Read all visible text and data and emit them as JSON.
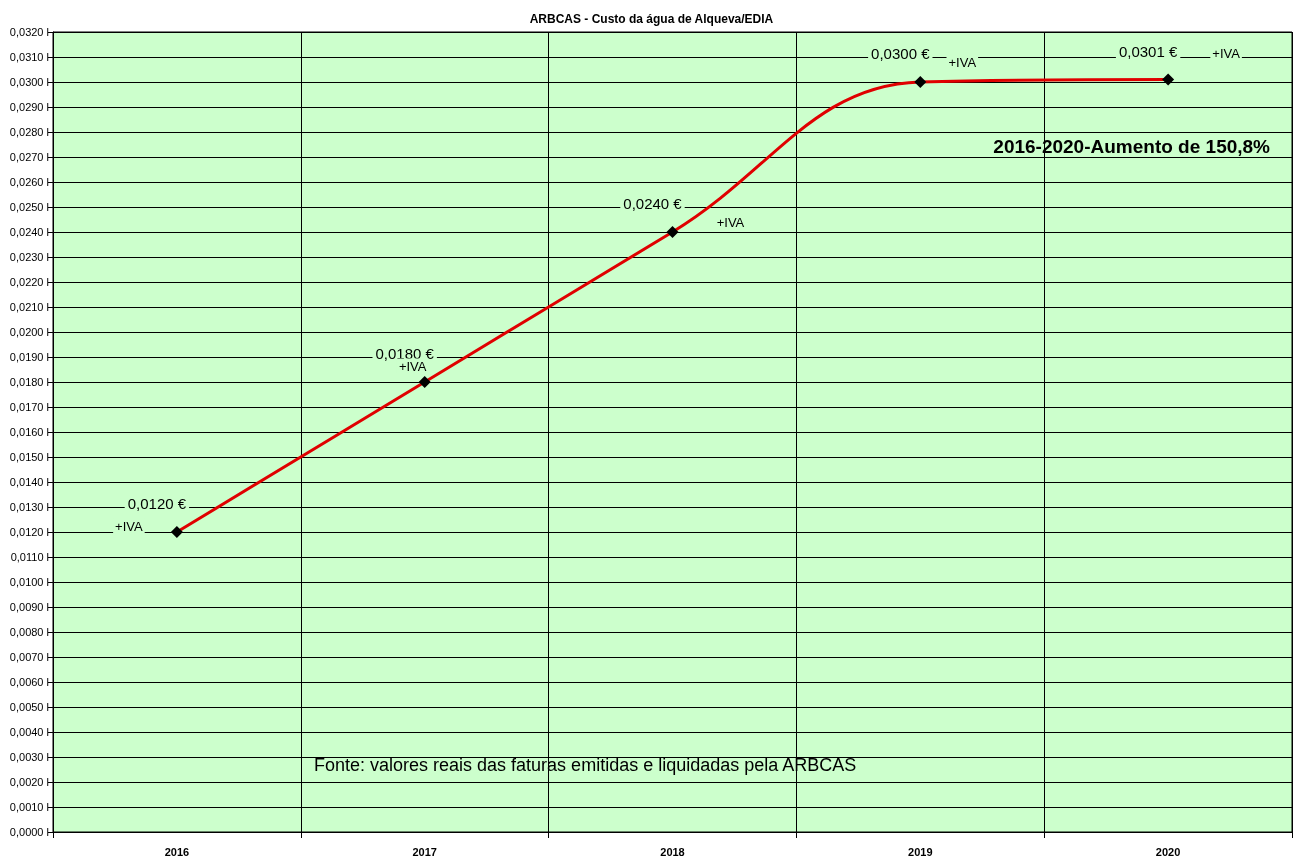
{
  "chart_data": {
    "type": "line",
    "title": "ARBCAS - Custo da água de Alqueva/EDIA",
    "categories": [
      "2016",
      "2017",
      "2018",
      "2019",
      "2020"
    ],
    "series": [
      {
        "color": "#e00000",
        "values": [
          0.012,
          0.018,
          0.024,
          0.03,
          0.0301
        ],
        "value_labels": [
          "0,0120 €",
          "0,0180 €",
          "0,0240 €",
          "0,0300 €",
          "0,0301 €"
        ]
      }
    ],
    "ylim": [
      0,
      0.032
    ],
    "yticks": [
      {
        "value": 0,
        "label": "0,0000 l"
      },
      {
        "value": 0.001,
        "label": "0,0010 l"
      },
      {
        "value": 0.002,
        "label": "0,0020 l"
      },
      {
        "value": 0.003,
        "label": "0,0030 l"
      },
      {
        "value": 0.004,
        "label": "0,0040 l"
      },
      {
        "value": 0.005,
        "label": "0,0050 l"
      },
      {
        "value": 0.006,
        "label": "0,0060 l"
      },
      {
        "value": 0.007,
        "label": "0,0070 l"
      },
      {
        "value": 0.008,
        "label": "0,0080 l"
      },
      {
        "value": 0.009,
        "label": "0,0090 l"
      },
      {
        "value": 0.01,
        "label": "0,0100 l"
      },
      {
        "value": 0.011,
        "label": "0,0110 l"
      },
      {
        "value": 0.012,
        "label": "0,0120 l"
      },
      {
        "value": 0.013,
        "label": "0,0130 l"
      },
      {
        "value": 0.014,
        "label": "0,0140 l"
      },
      {
        "value": 0.015,
        "label": "0,0150 l"
      },
      {
        "value": 0.016,
        "label": "0,0160 l"
      },
      {
        "value": 0.017,
        "label": "0,0170 l"
      },
      {
        "value": 0.018,
        "label": "0,0180 l"
      },
      {
        "value": 0.019,
        "label": "0,0190 l"
      },
      {
        "value": 0.02,
        "label": "0,0200 l"
      },
      {
        "value": 0.021,
        "label": "0,0210 l"
      },
      {
        "value": 0.022,
        "label": "0,0220 l"
      },
      {
        "value": 0.023,
        "label": "0,0230 l"
      },
      {
        "value": 0.024,
        "label": "0,0240 l"
      },
      {
        "value": 0.025,
        "label": "0,0250 l"
      },
      {
        "value": 0.026,
        "label": "0,0260 l"
      },
      {
        "value": 0.027,
        "label": "0,0270 l"
      },
      {
        "value": 0.028,
        "label": "0,0280 l"
      },
      {
        "value": 0.029,
        "label": "0,0290 l"
      },
      {
        "value": 0.03,
        "label": "0,0300 l"
      },
      {
        "value": 0.031,
        "label": "0,0310 l"
      },
      {
        "value": 0.032,
        "label": "0,0320 l"
      }
    ],
    "annotations": [
      "2016-2020-Aumento de 150,8%",
      "Fonte: valores reais das faturas emitidas e liquidadas pela ARBCAS",
      "+IVA",
      "+IVA",
      "+IVA",
      "+IVA",
      "+IVA"
    ],
    "grid": true,
    "marker": "diamond",
    "line_style": "solid"
  }
}
